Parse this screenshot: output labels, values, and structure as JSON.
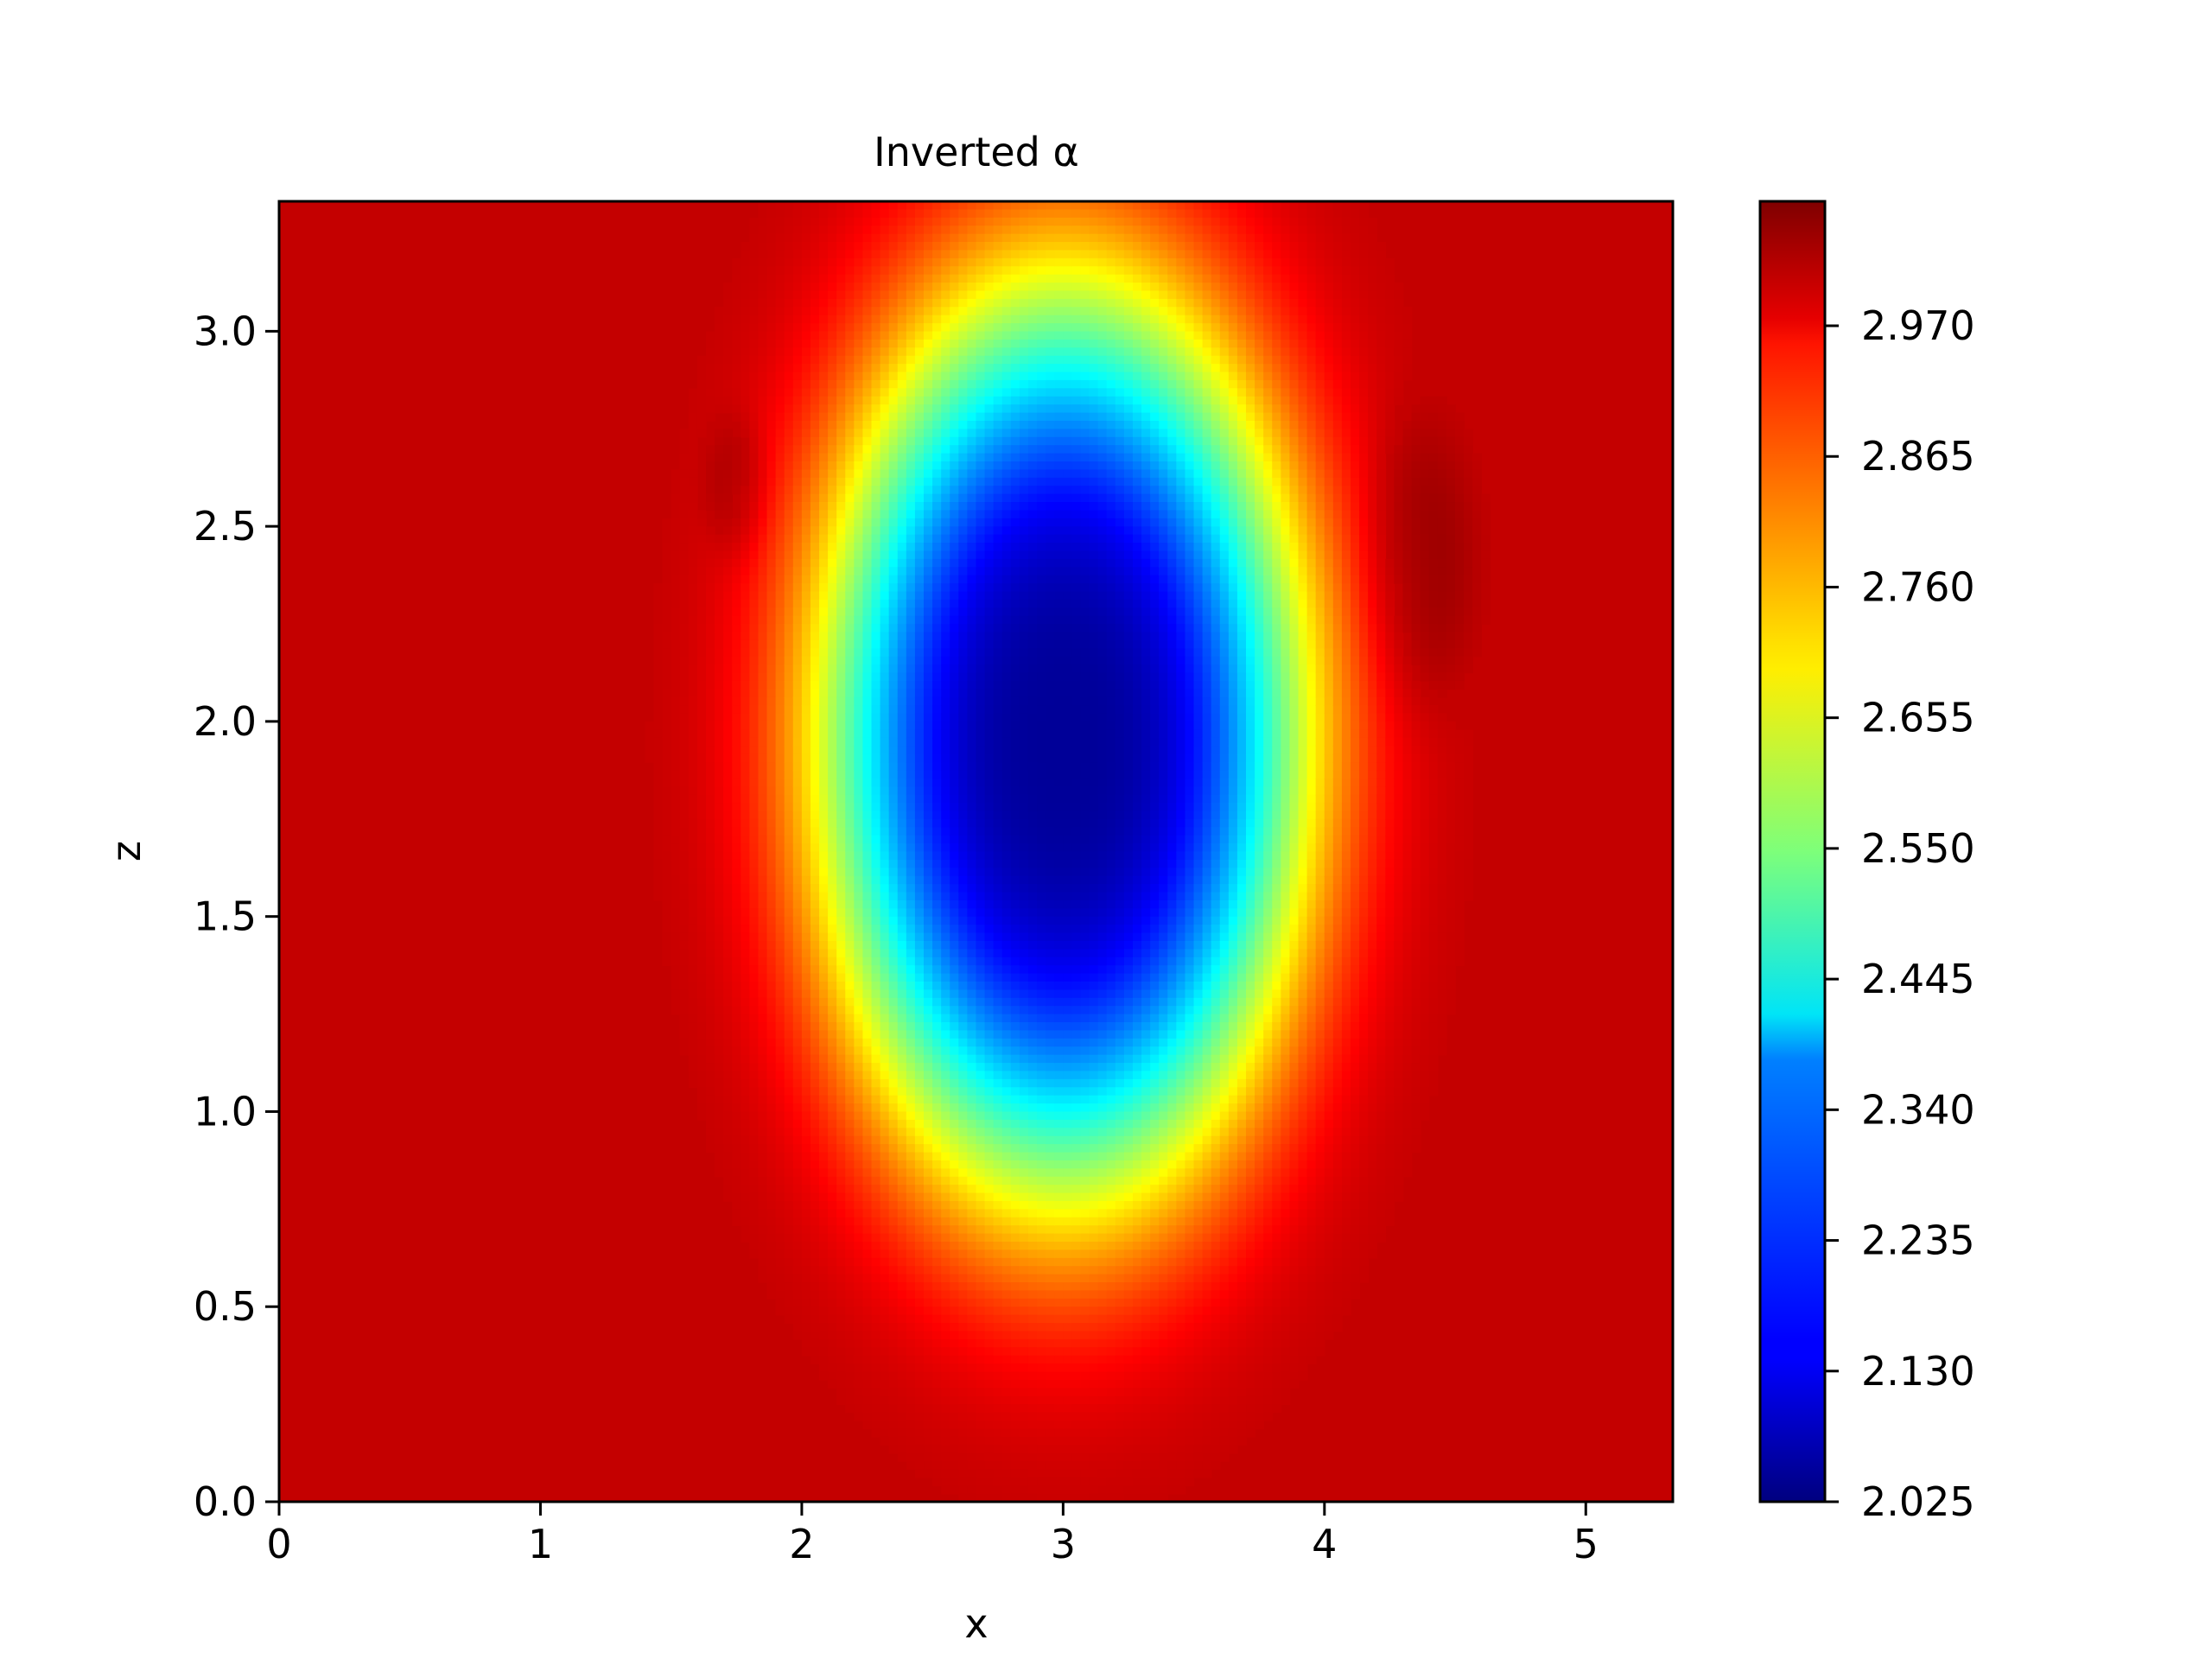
{
  "chart_data": {
    "type": "heatmap",
    "title": "Inverted α",
    "xlabel": "x",
    "ylabel": "z",
    "xlim": [
      0,
      5.333
    ],
    "ylim": [
      0,
      3.333
    ],
    "x_ticks": [
      "0",
      "1",
      "2",
      "3",
      "4",
      "5"
    ],
    "x_tick_values": [
      0,
      1,
      2,
      3,
      4,
      5
    ],
    "y_ticks": [
      "0.0",
      "0.5",
      "1.0",
      "1.5",
      "2.0",
      "2.5",
      "3.0"
    ],
    "y_tick_values": [
      0,
      0.5,
      1.0,
      1.5,
      2.0,
      2.5,
      3.0
    ],
    "colorbar": {
      "colormap": "jet",
      "range": [
        2.025,
        3.07
      ],
      "tick_labels": [
        "2.025",
        "2.130",
        "2.235",
        "2.340",
        "2.445",
        "2.550",
        "2.655",
        "2.760",
        "2.865",
        "2.970"
      ],
      "tick_values": [
        2.025,
        2.13,
        2.235,
        2.34,
        2.445,
        2.55,
        2.655,
        2.76,
        2.865,
        2.97
      ]
    },
    "background_value": 3.0,
    "features": [
      {
        "kind": "low",
        "center_x": 3.0,
        "center_z": 1.95,
        "radius_x": 0.75,
        "radius_z": 0.95,
        "min_value": 2.05
      },
      {
        "kind": "high",
        "center_x": 4.35,
        "center_z": 2.4,
        "radius_x": 0.18,
        "radius_z": 0.3,
        "max_value": 3.05
      },
      {
        "kind": "high",
        "center_x": 1.75,
        "center_z": 2.6,
        "radius_x": 0.1,
        "radius_z": 0.15,
        "max_value": 3.04
      }
    ]
  }
}
